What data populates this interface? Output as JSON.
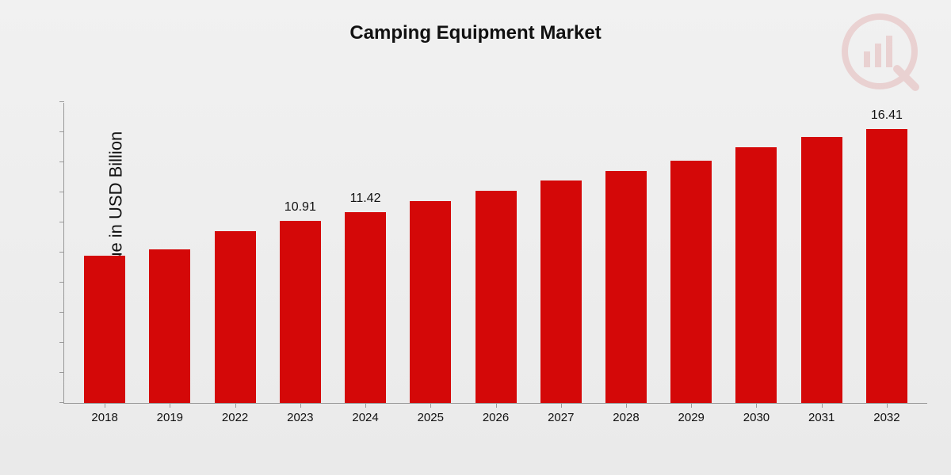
{
  "chart": {
    "type": "bar",
    "title": "Camping Equipment Market",
    "title_fontsize": 24,
    "ylabel": "Market Value in USD Billion",
    "ylabel_fontsize": 22,
    "categories": [
      "2018",
      "2019",
      "2022",
      "2023",
      "2024",
      "2025",
      "2026",
      "2027",
      "2028",
      "2029",
      "2030",
      "2031",
      "2032"
    ],
    "values": [
      8.8,
      9.2,
      10.3,
      10.91,
      11.42,
      12.1,
      12.7,
      13.3,
      13.9,
      14.5,
      15.3,
      15.9,
      16.41
    ],
    "value_labels": {
      "3": "10.91",
      "4": "11.42",
      "12": "16.41"
    },
    "bar_color": "#d40808",
    "ylim": [
      0,
      18
    ],
    "ytick_count": 10,
    "xlabel_fontsize": 15,
    "barlabel_fontsize": 16,
    "background_gradient_top": "#f1f1f1",
    "background_gradient_bottom": "#eaeaea",
    "axis_color": "#999999",
    "watermark_color": "#c72828"
  }
}
